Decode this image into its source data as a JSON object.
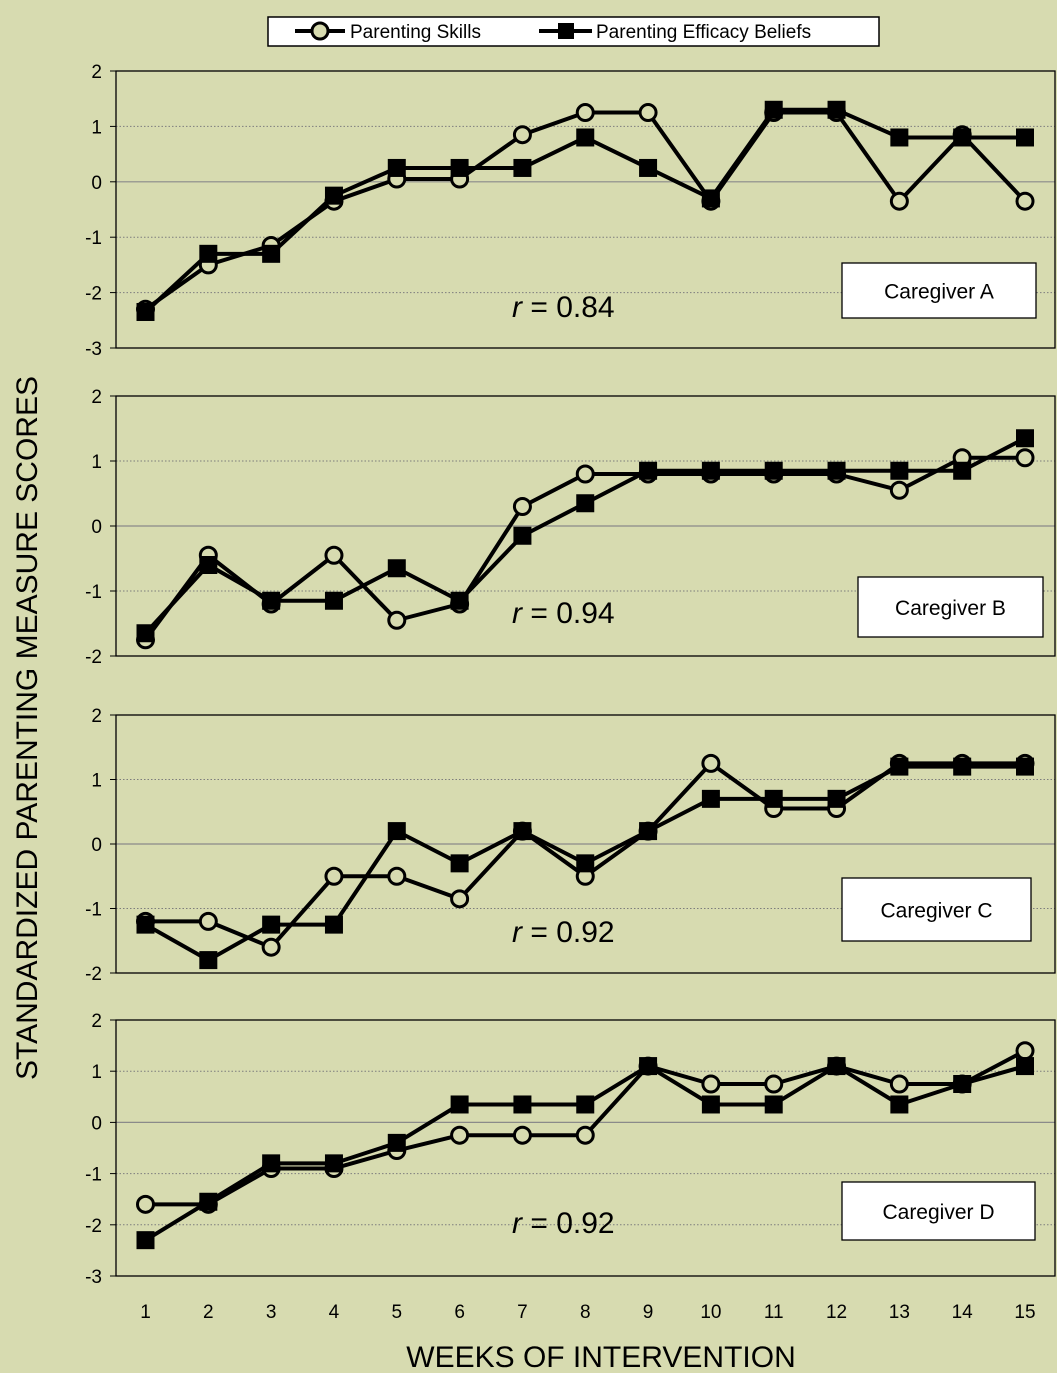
{
  "chart_data": {
    "type": "line",
    "xlabel": "WEEKS OF INTERVENTION",
    "ylabel": "STANDARDIZED PARENTING MEASURE SCORES",
    "x": [
      1,
      2,
      3,
      4,
      5,
      6,
      7,
      8,
      9,
      10,
      11,
      12,
      13,
      14,
      15
    ],
    "legend": {
      "position": "top",
      "entries": [
        {
          "name": "Parenting Skills",
          "marker": "circle-open"
        },
        {
          "name": "Parenting Efficacy Beliefs",
          "marker": "square-filled"
        }
      ]
    },
    "grid": true,
    "colors": {
      "background": "#d7dbb0",
      "line": "#000000",
      "grid": "#8a8a8a"
    },
    "panels": [
      {
        "label": "Caregiver A",
        "r_prefix": "r",
        "r_value": " = 0.84",
        "ylim": [
          -3,
          2
        ],
        "yticks": [
          "2",
          "1",
          "0",
          "-1",
          "-2",
          "-3"
        ],
        "series": [
          {
            "name": "Parenting Skills",
            "values": [
              -2.3,
              -1.5,
              -1.15,
              -0.35,
              0.05,
              0.05,
              0.85,
              1.25,
              1.25,
              -0.35,
              1.25,
              1.25,
              -0.35,
              0.85,
              -0.35
            ]
          },
          {
            "name": "Parenting Efficacy Beliefs",
            "values": [
              -2.35,
              -1.3,
              -1.3,
              -0.25,
              0.25,
              0.25,
              0.25,
              0.8,
              0.25,
              -0.3,
              1.3,
              1.3,
              0.8,
              0.8,
              0.8
            ]
          }
        ]
      },
      {
        "label": "Caregiver B",
        "r_prefix": "r",
        "r_value": " = 0.94",
        "ylim": [
          -2,
          2
        ],
        "yticks": [
          "2",
          "1",
          "0",
          "-1",
          "-2"
        ],
        "series": [
          {
            "name": "Parenting Skills",
            "values": [
              -1.75,
              -0.45,
              -1.2,
              -0.45,
              -1.45,
              -1.2,
              0.3,
              0.8,
              0.8,
              0.8,
              0.8,
              0.8,
              0.55,
              1.05,
              1.05
            ]
          },
          {
            "name": "Parenting Efficacy Beliefs",
            "values": [
              -1.65,
              -0.6,
              -1.15,
              -1.15,
              -0.65,
              -1.15,
              -0.15,
              0.35,
              0.85,
              0.85,
              0.85,
              0.85,
              0.85,
              0.85,
              1.35
            ]
          }
        ]
      },
      {
        "label": "Caregiver C",
        "r_prefix": "r",
        "r_value": " = 0.92",
        "ylim": [
          -2,
          2
        ],
        "yticks": [
          "2",
          "1",
          "0",
          "-1",
          "-2"
        ],
        "series": [
          {
            "name": "Parenting Skills",
            "values": [
              -1.2,
              -1.2,
              -1.6,
              -0.5,
              -0.5,
              -0.85,
              0.2,
              -0.5,
              0.2,
              1.25,
              0.55,
              0.55,
              1.25,
              1.25,
              1.25
            ]
          },
          {
            "name": "Parenting Efficacy Beliefs",
            "values": [
              -1.25,
              -1.8,
              -1.25,
              -1.25,
              0.2,
              -0.3,
              0.2,
              -0.3,
              0.2,
              0.7,
              0.7,
              0.7,
              1.2,
              1.2,
              1.2
            ]
          }
        ]
      },
      {
        "label": "Caregiver D",
        "r_prefix": "r",
        "r_value": " = 0.92",
        "ylim": [
          -3,
          2
        ],
        "yticks": [
          "2",
          "1",
          "0",
          "-1",
          "-2",
          "-3"
        ],
        "series": [
          {
            "name": "Parenting Skills",
            "values": [
              -1.6,
              -1.6,
              -0.9,
              -0.9,
              -0.55,
              -0.25,
              -0.25,
              -0.25,
              1.1,
              0.75,
              0.75,
              1.1,
              0.75,
              0.75,
              1.4
            ]
          },
          {
            "name": "Parenting Efficacy Beliefs",
            "values": [
              -2.3,
              -1.55,
              -0.8,
              -0.8,
              -0.4,
              0.35,
              0.35,
              0.35,
              1.1,
              0.35,
              0.35,
              1.1,
              0.35,
              0.75,
              1.1
            ]
          }
        ]
      }
    ]
  }
}
